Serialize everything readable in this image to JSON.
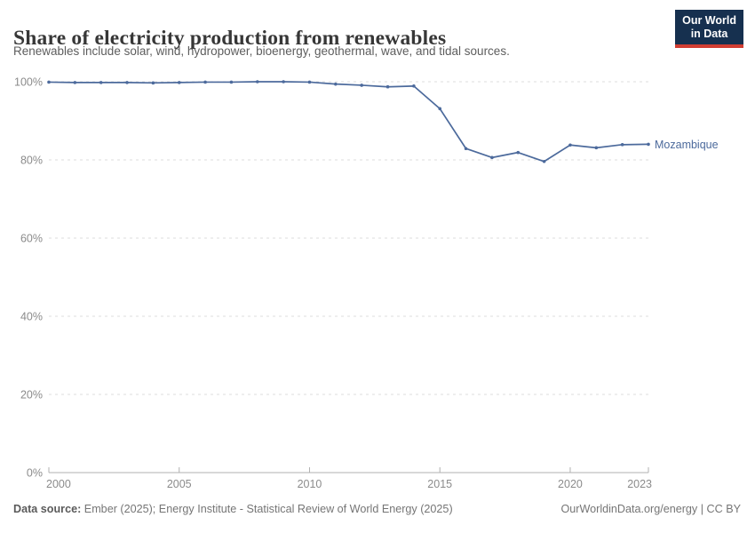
{
  "header": {
    "title": "Share of electricity production from renewables",
    "subtitle": "Renewables include solar, wind, hydropower, bioenergy, geothermal, wave, and tidal sources.",
    "logo": {
      "line1": "Our World",
      "line2": "in Data"
    }
  },
  "chart_data": {
    "type": "line",
    "title": "Share of electricity production from renewables",
    "unit": "%",
    "x": [
      2000,
      2001,
      2002,
      2003,
      2004,
      2005,
      2006,
      2007,
      2008,
      2009,
      2010,
      2011,
      2012,
      2013,
      2014,
      2015,
      2016,
      2017,
      2018,
      2019,
      2020,
      2021,
      2022,
      2023
    ],
    "series": [
      {
        "name": "Mozambique",
        "color": "#4c6a9c",
        "values": [
          99.9,
          99.8,
          99.8,
          99.8,
          99.7,
          99.8,
          99.9,
          99.9,
          100,
          100,
          99.9,
          99.4,
          99.1,
          98.7,
          98.9,
          93.1,
          82.9,
          80.6,
          81.9,
          79.6,
          83.8,
          83.1,
          83.9,
          84.0
        ]
      }
    ],
    "ylim": [
      0,
      100
    ],
    "yticks": [
      {
        "v": 0,
        "label": "0%"
      },
      {
        "v": 20,
        "label": "20%"
      },
      {
        "v": 40,
        "label": "40%"
      },
      {
        "v": 60,
        "label": "60%"
      },
      {
        "v": 80,
        "label": "80%"
      },
      {
        "v": 100,
        "label": "100%"
      }
    ],
    "xticks": [
      2000,
      2005,
      2010,
      2015,
      2020,
      2023
    ],
    "grid": "horizontal-dashed",
    "legend_position": "end-of-line-label"
  },
  "footer": {
    "source_label": "Data source:",
    "source_text": " Ember (2025); Energy Institute - Statistical Review of World Energy (2025)",
    "rights": "OurWorldinData.org/energy | CC BY"
  },
  "colors": {
    "accent_line": "#4c6a9c",
    "gridline": "#dcdcdc",
    "axis": "#b0b0b0",
    "tick_label": "#8b8b8b",
    "logo_bg": "#16304f",
    "logo_stripe": "#d13d32"
  }
}
